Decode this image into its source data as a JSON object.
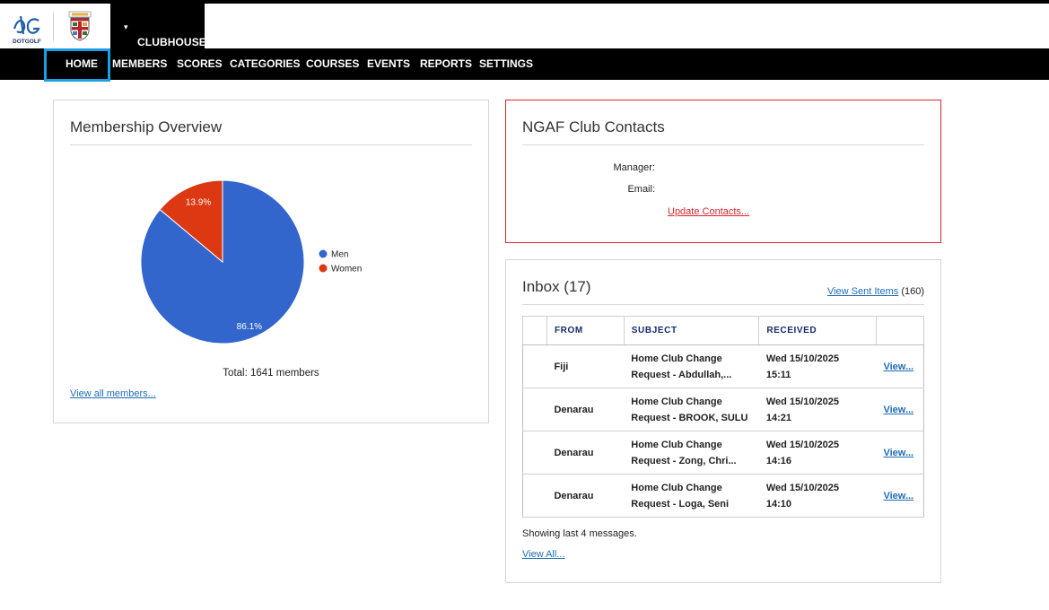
{
  "header": {
    "brand_text": "DOTGOLF",
    "club_menu_label": "CLUBHOUSE",
    "club_menu_caret": "▾"
  },
  "nav": {
    "items": [
      {
        "label": "HOME"
      },
      {
        "label": "MEMBERS"
      },
      {
        "label": "SCORES"
      },
      {
        "label": "CATEGORIES"
      },
      {
        "label": "COURSES"
      },
      {
        "label": "EVENTS"
      },
      {
        "label": "REPORTS"
      },
      {
        "label": "SETTINGS"
      }
    ]
  },
  "membership": {
    "title": "Membership Overview",
    "total_label": "Total: 1641 members",
    "view_all_link": "View all members..."
  },
  "chart_data": {
    "type": "pie",
    "slices": [
      {
        "name": "Men",
        "value": 86.1,
        "label": "86.1%",
        "color": "#3366cc"
      },
      {
        "name": "Women",
        "value": 13.9,
        "label": "13.9%",
        "color": "#dc3912"
      }
    ],
    "legend_position": "right"
  },
  "contacts": {
    "title": "NGAF Club Contacts",
    "manager_label": "Manager:",
    "email_label": "Email:",
    "update_link": "Update Contacts..."
  },
  "inbox": {
    "title": "Inbox (17)",
    "sent_link": "View Sent Items",
    "sent_count": "(160)",
    "columns": [
      "FROM",
      "SUBJECT",
      "RECEIVED"
    ],
    "rows": [
      {
        "from": "Fiji",
        "subject_1": "Home Club Change",
        "subject_2": "Request - Abdullah,...",
        "received_1": "Wed 15/10/2025",
        "received_2": "15:11",
        "action": "View..."
      },
      {
        "from": "Denarau",
        "subject_1": "Home Club Change",
        "subject_2": "Request - BROOK, SULU",
        "received_1": "Wed 15/10/2025",
        "received_2": "14:21",
        "action": "View..."
      },
      {
        "from": "Denarau",
        "subject_1": "Home Club Change",
        "subject_2": "Request - Zong, Chri...",
        "received_1": "Wed 15/10/2025",
        "received_2": "14:16",
        "action": "View..."
      },
      {
        "from": "Denarau",
        "subject_1": "Home Club Change",
        "subject_2": "Request - Loga, Seni",
        "received_1": "Wed 15/10/2025",
        "received_2": "14:10",
        "action": "View..."
      }
    ],
    "footer_text": "Showing last 4 messages.",
    "view_all_link": "View All..."
  }
}
